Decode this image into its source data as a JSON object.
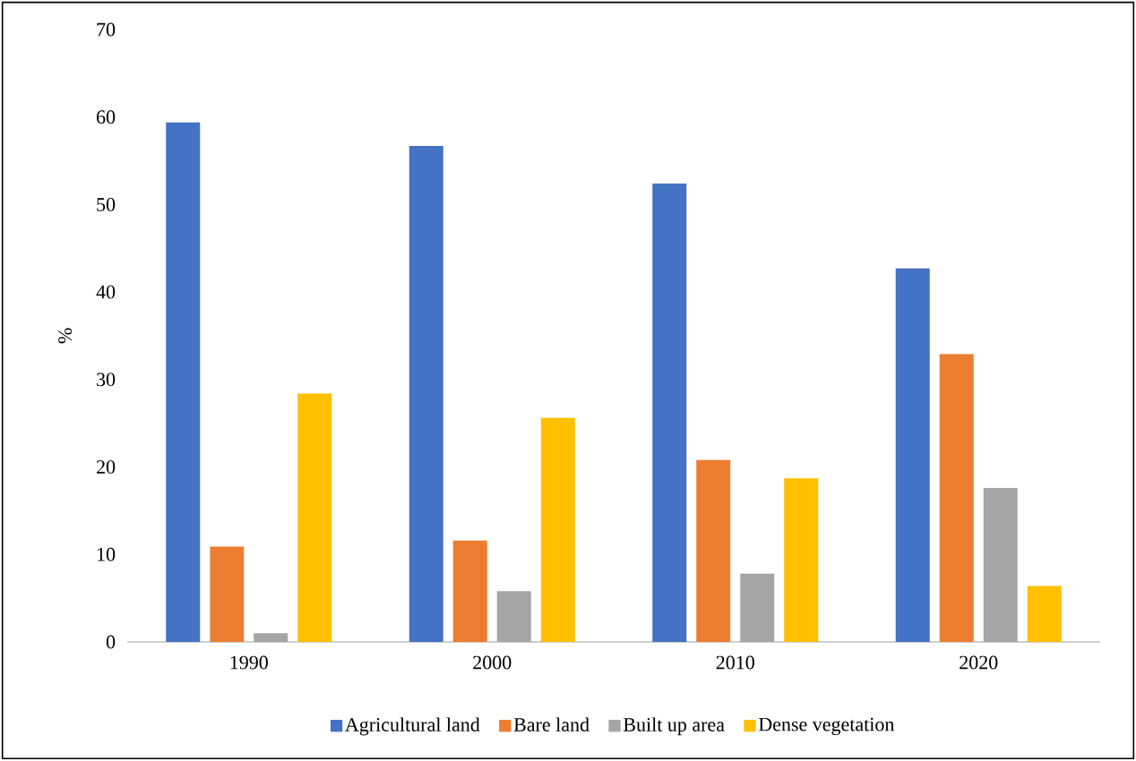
{
  "chart_data": {
    "type": "bar",
    "ylabel": "%",
    "categories": [
      "1990",
      "2000",
      "2010",
      "2020"
    ],
    "series": [
      {
        "name": "Agricultural land",
        "color": "#4472c4",
        "values": [
          59.4,
          56.7,
          52.4,
          42.7
        ]
      },
      {
        "name": "Bare land",
        "color": "#ed7d31",
        "values": [
          10.9,
          11.6,
          20.8,
          32.9
        ]
      },
      {
        "name": "Built up area",
        "color": "#a5a5a5",
        "values": [
          1.0,
          5.8,
          7.8,
          17.6
        ]
      },
      {
        "name": "Dense vegetation",
        "color": "#ffc000",
        "values": [
          28.4,
          25.6,
          18.7,
          6.4
        ]
      }
    ],
    "ylim": [
      0,
      70
    ],
    "yticks": [
      0,
      10,
      20,
      30,
      40,
      50,
      60,
      70
    ],
    "grid": false,
    "legend": "bottom"
  }
}
